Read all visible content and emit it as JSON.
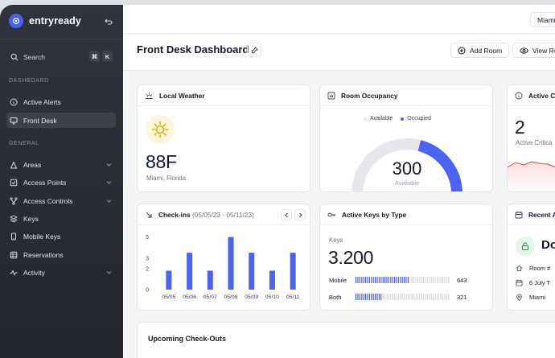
{
  "brand": {
    "name": "entryready"
  },
  "search": {
    "label": "Search",
    "kbd1": "⌘",
    "kbd2": "K"
  },
  "sidebar": {
    "dashboard_heading": "DASHBOARD",
    "general_heading": "GENERAL",
    "dashboard_items": [
      {
        "label": "Active Alerts",
        "icon": "info-icon"
      },
      {
        "label": "Front Desk",
        "icon": "monitor-icon"
      }
    ],
    "general_items": [
      {
        "label": "Areas",
        "icon": "triangle-ruler-icon"
      },
      {
        "label": "Access Points",
        "icon": "checkbox-icon"
      },
      {
        "label": "Access Controls",
        "icon": "branch-icon"
      },
      {
        "label": "Keys",
        "icon": "layers-icon"
      },
      {
        "label": "Mobile Keys",
        "icon": "phone-icon"
      },
      {
        "label": "Reservations",
        "icon": "grid-icon"
      },
      {
        "label": "Activity",
        "icon": "pulse-icon"
      }
    ]
  },
  "topbar": {
    "location": "Miami"
  },
  "header": {
    "title": "Front Desk Dashboard",
    "add_room": "Add Room",
    "view_room": "View Roon"
  },
  "weather": {
    "title": "Local Weather",
    "temp": "88F",
    "location": "Miami, Florida"
  },
  "occupancy": {
    "title": "Room Occupancy",
    "legend_available": "Available",
    "legend_occupied": "Occupied",
    "value": "300",
    "sublabel": "Available",
    "occupied_fraction": 0.42,
    "accent": "#4b63f3",
    "track": "#e5e7eb"
  },
  "critical": {
    "title": "Active Cri",
    "value": "2",
    "sublabel": "Active Critica"
  },
  "checkins": {
    "title": "Check-ins",
    "range": "(05/05/23 - 05/11/23)",
    "chart_data": {
      "type": "bar",
      "categories": [
        "05/05",
        "05/06",
        "05/07",
        "05/08",
        "05/09",
        "05/10",
        "05/11"
      ],
      "values": [
        1.8,
        3.5,
        1.8,
        5.0,
        3.5,
        1.8,
        3.5
      ],
      "yticks": [
        0,
        2,
        3,
        5
      ],
      "ylim": [
        0,
        5.2
      ],
      "color": "#4b63f3"
    }
  },
  "keys": {
    "title": "Active Keys by Type",
    "label": "Keys",
    "total": "3.200",
    "rows": [
      {
        "label": "Mobile",
        "value": "643",
        "fraction": 0.55
      },
      {
        "label": "Both",
        "value": "321",
        "fraction": 0.28
      }
    ]
  },
  "recent": {
    "title": "Recent A",
    "name": "Do",
    "room": "Room #",
    "date": "6 July T",
    "city": "Miami"
  },
  "upcoming": {
    "title": "Upcoming Check-Outs"
  }
}
